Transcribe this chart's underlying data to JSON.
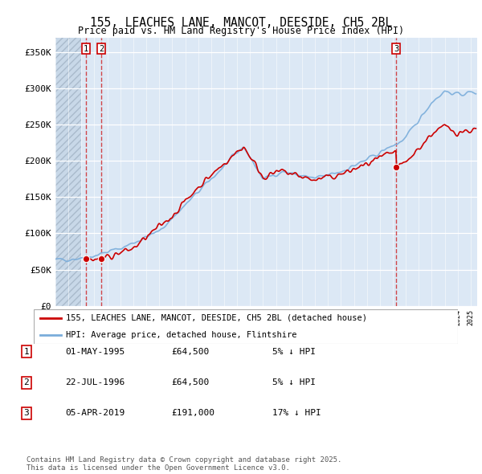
{
  "title": "155, LEACHES LANE, MANCOT, DEESIDE, CH5 2BL",
  "subtitle": "Price paid vs. HM Land Registry's House Price Index (HPI)",
  "legend_line1": "155, LEACHES LANE, MANCOT, DEESIDE, CH5 2BL (detached house)",
  "legend_line2": "HPI: Average price, detached house, Flintshire",
  "transactions": [
    {
      "label": "1",
      "date": "01-MAY-1995",
      "price": 64500,
      "pct": "5%",
      "dir": "↓",
      "x_year": 1995.33
    },
    {
      "label": "2",
      "date": "22-JUL-1996",
      "price": 64500,
      "pct": "5%",
      "dir": "↓",
      "x_year": 1996.55
    },
    {
      "label": "3",
      "date": "05-APR-2019",
      "price": 191000,
      "pct": "17%",
      "dir": "↓",
      "x_year": 2019.26
    }
  ],
  "footer": "Contains HM Land Registry data © Crown copyright and database right 2025.\nThis data is licensed under the Open Government Licence v3.0.",
  "price_color": "#cc0000",
  "hpi_color": "#7aaddb",
  "background_chart": "#dce8f5",
  "hatch_end_year": 1995.0,
  "ylim": [
    0,
    370000
  ],
  "xlim_start": 1993,
  "xlim_end": 2025.5,
  "yticks": [
    0,
    50000,
    100000,
    150000,
    200000,
    250000,
    300000,
    350000
  ],
  "ytick_labels": [
    "£0",
    "£50K",
    "£100K",
    "£150K",
    "£200K",
    "£250K",
    "£300K",
    "£350K"
  ]
}
